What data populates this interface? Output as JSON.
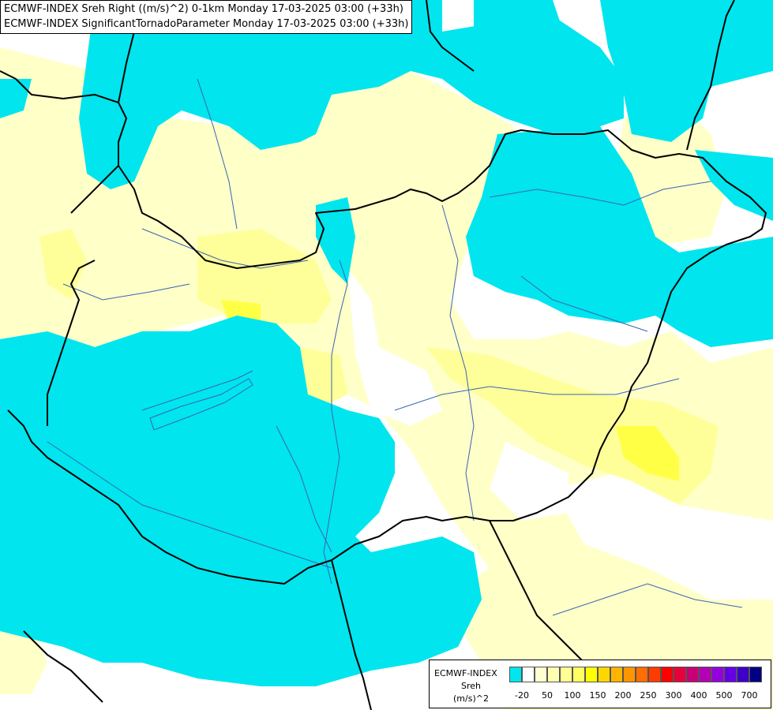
{
  "titles": [
    "ECMWF-INDEX Sreh Right ((m/s)^2) 0-1km Monday 17-03-2025 03:00 (+33h)",
    "ECMWF-INDEX SignificantTornadoParameter Monday 17-03-2025 03:00 (+33h)"
  ],
  "legend": {
    "model": "ECMWF-INDEX",
    "variable": "Sreh",
    "unit": "(m/s)^2",
    "colors": [
      "#00e5ee",
      "#ffffff",
      "#ffffd0",
      "#ffffb4",
      "#ffff96",
      "#ffff64",
      "#ffff00",
      "#ffd700",
      "#ffb400",
      "#ff9600",
      "#ff6e00",
      "#ff3c00",
      "#ff0000",
      "#e6003c",
      "#c80078",
      "#b400b4",
      "#9600dc",
      "#6400e6",
      "#3c00c8",
      "#000080"
    ],
    "labels": [
      "-20",
      "50",
      "100",
      "150",
      "200",
      "250",
      "300",
      "400",
      "500",
      "700"
    ]
  },
  "colors": {
    "cyan": "#00e5ee",
    "white": "#ffffff",
    "pale_yellow": "#ffffc8",
    "light_yellow": "#ffff9a",
    "yellow": "#ffff46",
    "border": "#000000",
    "river": "#3a64b4"
  }
}
